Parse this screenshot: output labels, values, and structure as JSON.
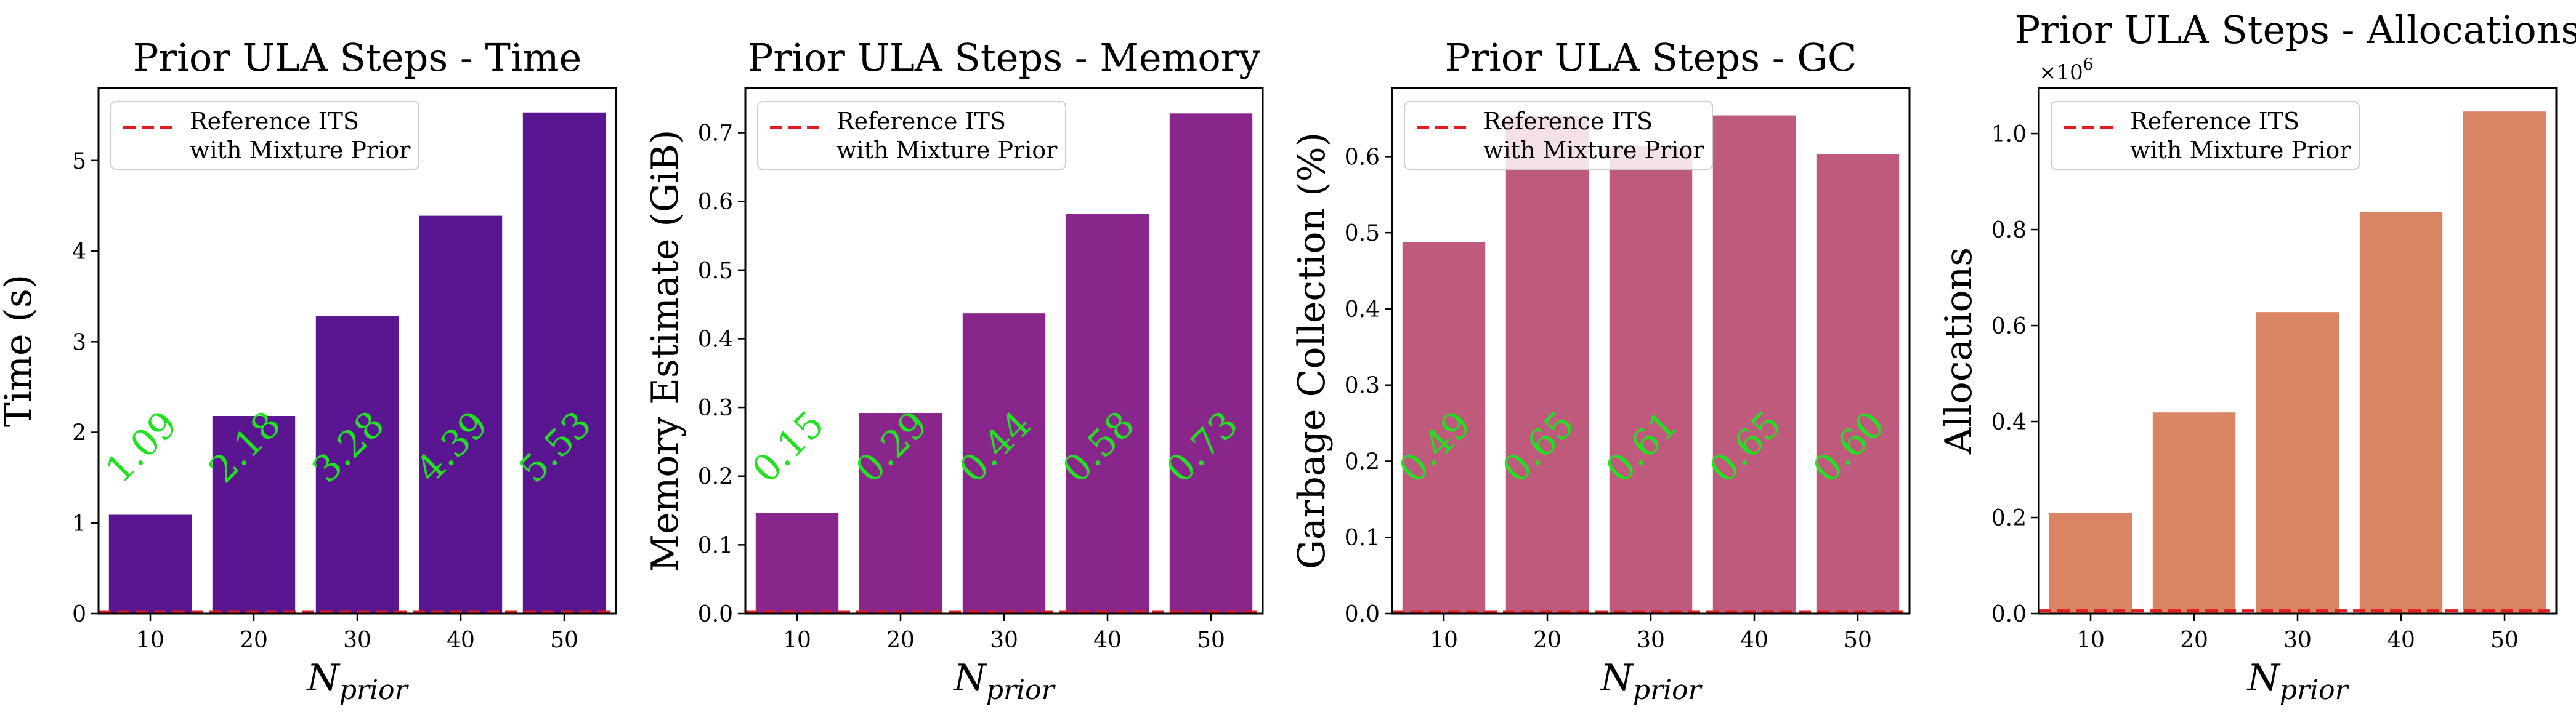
{
  "chart_data": [
    {
      "type": "bar",
      "title": "Prior ULA Steps - Time",
      "xlabel": "N",
      "xlabel_sub": "prior",
      "ylabel": "Time (s)",
      "categories": [
        "10",
        "20",
        "30",
        "40",
        "50"
      ],
      "values": [
        1.09,
        2.18,
        3.28,
        4.39,
        5.53
      ],
      "value_labels": [
        "1.09",
        "2.18",
        "3.28",
        "4.39",
        "5.53"
      ],
      "ylim": [
        0,
        5.8
      ],
      "yticks": [
        0,
        1,
        2,
        3,
        4,
        5
      ],
      "ytick_labels": [
        "0",
        "1",
        "2",
        "3",
        "4",
        "5"
      ],
      "reference_value": 0.0,
      "legend": [
        "Reference ITS",
        "with Mixture Prior"
      ],
      "legend_position": "top-left",
      "bar_color": "#5a1591",
      "reference_color": "#e41a1c",
      "label_color": "#22e022"
    },
    {
      "type": "bar",
      "title": "Prior ULA Steps - Memory",
      "xlabel": "N",
      "xlabel_sub": "prior",
      "ylabel": "Memory Estimate (GiB)",
      "categories": [
        "10",
        "20",
        "30",
        "40",
        "50"
      ],
      "values": [
        0.146,
        0.292,
        0.437,
        0.582,
        0.728
      ],
      "value_labels": [
        "0.15",
        "0.29",
        "0.44",
        "0.58",
        "0.73"
      ],
      "ylim": [
        0,
        0.765
      ],
      "yticks": [
        0,
        0.1,
        0.2,
        0.3,
        0.4,
        0.5,
        0.6,
        0.7
      ],
      "ytick_labels": [
        "0.0",
        "0.1",
        "0.2",
        "0.3",
        "0.4",
        "0.5",
        "0.6",
        "0.7"
      ],
      "reference_value": 0.0,
      "legend": [
        "Reference ITS",
        "with Mixture Prior"
      ],
      "legend_position": "top-left",
      "bar_color": "#89268c",
      "reference_color": "#e41a1c",
      "label_color": "#22e022"
    },
    {
      "type": "bar",
      "title": "Prior ULA Steps - GC",
      "xlabel": "N",
      "xlabel_sub": "prior",
      "ylabel": "Garbage Collection (%)",
      "categories": [
        "10",
        "20",
        "30",
        "40",
        "50"
      ],
      "values": [
        0.488,
        0.654,
        0.614,
        0.654,
        0.603
      ],
      "value_labels": [
        "0.49",
        "0.65",
        "0.61",
        "0.65",
        "0.60"
      ],
      "ylim": [
        0,
        0.69
      ],
      "yticks": [
        0,
        0.1,
        0.2,
        0.3,
        0.4,
        0.5,
        0.6
      ],
      "ytick_labels": [
        "0.0",
        "0.1",
        "0.2",
        "0.3",
        "0.4",
        "0.5",
        "0.6"
      ],
      "reference_value": 0.0,
      "legend": [
        "Reference ITS",
        "with Mixture Prior"
      ],
      "legend_position": "top-left",
      "bar_color": "#be5a7b",
      "reference_color": "#e41a1c",
      "label_color": "#22e022"
    },
    {
      "type": "bar",
      "title": "Prior ULA Steps - Allocations",
      "xlabel": "N",
      "xlabel_sub": "prior",
      "ylabel": "Allocations",
      "categories": [
        "10",
        "20",
        "30",
        "40",
        "50"
      ],
      "values": [
        209000,
        419000,
        628000,
        837000,
        1046000
      ],
      "value_labels": [],
      "ylim": [
        0,
        1095000
      ],
      "yticks": [
        0,
        200000,
        400000,
        600000,
        800000,
        1000000
      ],
      "ytick_labels": [
        "0.0",
        "0.2",
        "0.4",
        "0.6",
        "0.8",
        "1.0"
      ],
      "scale_label": "×10",
      "scale_exponent": "6",
      "reference_value": 3000,
      "legend": [
        "Reference ITS",
        "with Mixture Prior"
      ],
      "legend_position": "top-left",
      "bar_color": "#d98462",
      "reference_color": "#e41a1c",
      "label_color": "#22e022"
    }
  ]
}
